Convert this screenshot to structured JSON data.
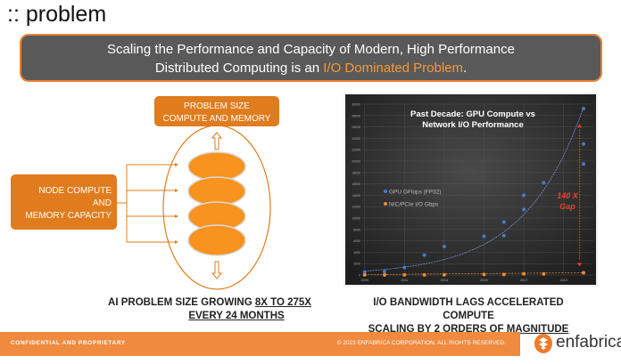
{
  "title": ":: problem",
  "banner": {
    "line1": "Scaling the Performance and Capacity of Modern, High Performance",
    "line2_pre": "Distributed Computing is an ",
    "line2_highlight": "I/O Dominated Problem",
    "line2_post": ".",
    "accent": "#f39a3c"
  },
  "diagram": {
    "top_box": [
      "PROBLEM SIZE",
      "COMPUTE AND MEMORY"
    ],
    "left_box": [
      "NODE COMPUTE",
      "AND",
      "MEMORY CAPACITY"
    ],
    "color": "#e07c1e"
  },
  "left_caption": {
    "pre": "AI PROBLEM SIZE GROWING ",
    "underlined": "8X TO 275X",
    "line2": "EVERY 24 MONTHS"
  },
  "right_caption": {
    "line1": "I/O BANDWIDTH LAGS ACCELERATED COMPUTE",
    "pre": "SCALING BY ",
    "underlined": "2 ORDERS OF MAGNITUDE"
  },
  "chart_data": {
    "type": "scatter",
    "title": [
      "Past Decade: GPU Compute vs",
      "Network I/O Performance"
    ],
    "xlim": [
      2009,
      2020.3
    ],
    "ylim": [
      0,
      30000
    ],
    "x_ticks": [
      2009,
      2011,
      2013,
      2015,
      2017,
      2019
    ],
    "y_ticks": [
      0,
      2000,
      4000,
      6000,
      8000,
      10000,
      12000,
      14000,
      16000,
      18000,
      20000,
      22000,
      24000,
      26000,
      28000,
      30000
    ],
    "grid": true,
    "legend": "left",
    "series": [
      {
        "name": "GPU GFlops (FP32)",
        "color": "#4a78c8",
        "trendline": "exponential",
        "points": [
          [
            2009,
            500
          ],
          [
            2010,
            600
          ],
          [
            2011,
            1300
          ],
          [
            2012,
            3500
          ],
          [
            2013,
            5000
          ],
          [
            2015,
            6800
          ],
          [
            2016,
            9300
          ],
          [
            2016,
            6900
          ],
          [
            2017,
            14000
          ],
          [
            2017,
            11500
          ],
          [
            2018,
            16200
          ],
          [
            2020,
            29200
          ],
          [
            2020,
            23000
          ],
          [
            2020,
            19500
          ]
        ]
      },
      {
        "name": "NIC/PCIe I/O Gbps",
        "color": "#f08a30",
        "points": [
          [
            2009,
            10
          ],
          [
            2010,
            10
          ],
          [
            2011,
            10
          ],
          [
            2012,
            10
          ],
          [
            2013,
            40
          ],
          [
            2015,
            100
          ],
          [
            2016,
            100
          ],
          [
            2017,
            200
          ],
          [
            2018,
            200
          ],
          [
            2020,
            400
          ]
        ]
      }
    ],
    "annotation": {
      "text": [
        "140 X",
        "Gap"
      ],
      "color": "#e8402a"
    }
  },
  "footer": {
    "left": "CONFIDENTIAL AND PROPRIETARY",
    "right": "© 2023 ENFABRICA CORPORATION. ALL RIGHTS RESERVED.",
    "brand": "enfabrica"
  }
}
